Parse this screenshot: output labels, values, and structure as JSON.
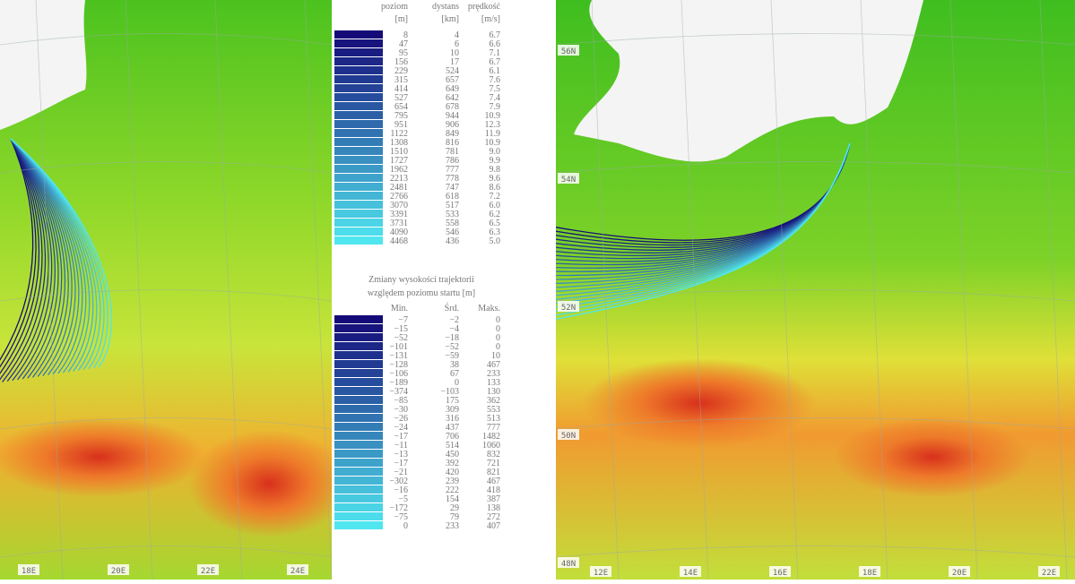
{
  "left_map": {
    "lon_labels": [
      "18E",
      "20E",
      "22E",
      "24E"
    ]
  },
  "right_map": {
    "lat_labels": [
      "56N",
      "54N",
      "52N",
      "50N",
      "48N"
    ],
    "lon_labels": [
      "12E",
      "14E",
      "16E",
      "18E",
      "20E",
      "22E"
    ]
  },
  "table1": {
    "headers": [
      "poziom",
      "dystans",
      "prędkość"
    ],
    "units": [
      "[m]",
      "[km]",
      "[m/s]"
    ],
    "rows": [
      [
        "8",
        "4",
        "6.7"
      ],
      [
        "47",
        "6",
        "6.6"
      ],
      [
        "95",
        "10",
        "7.1"
      ],
      [
        "156",
        "17",
        "6.7"
      ],
      [
        "229",
        "524",
        "6.1"
      ],
      [
        "315",
        "657",
        "7.6"
      ],
      [
        "414",
        "649",
        "7.5"
      ],
      [
        "527",
        "642",
        "7.4"
      ],
      [
        "654",
        "678",
        "7.9"
      ],
      [
        "795",
        "944",
        "10.9"
      ],
      [
        "951",
        "906",
        "12.3"
      ],
      [
        "1122",
        "849",
        "11.9"
      ],
      [
        "1308",
        "816",
        "10.9"
      ],
      [
        "1510",
        "781",
        "9.0"
      ],
      [
        "1727",
        "786",
        "9.9"
      ],
      [
        "1962",
        "777",
        "9.8"
      ],
      [
        "2213",
        "778",
        "9.6"
      ],
      [
        "2481",
        "747",
        "8.6"
      ],
      [
        "2766",
        "618",
        "7.2"
      ],
      [
        "3070",
        "517",
        "6.0"
      ],
      [
        "3391",
        "533",
        "6.2"
      ],
      [
        "3731",
        "558",
        "6.5"
      ],
      [
        "4090",
        "546",
        "6.3"
      ],
      [
        "4468",
        "436",
        "5.0"
      ]
    ]
  },
  "table2": {
    "title": [
      "Zmiany wysokości trajektorii",
      "względem poziomu startu [m]"
    ],
    "headers": [
      "Min.",
      "Śrd.",
      "Maks."
    ],
    "rows": [
      [
        "−7",
        "−2",
        "0"
      ],
      [
        "−15",
        "−4",
        "0"
      ],
      [
        "−52",
        "−18",
        "0"
      ],
      [
        "−101",
        "−52",
        "0"
      ],
      [
        "−131",
        "−59",
        "10"
      ],
      [
        "−128",
        "38",
        "467"
      ],
      [
        "−106",
        "67",
        "233"
      ],
      [
        "−189",
        "0",
        "133"
      ],
      [
        "−374",
        "−103",
        "130"
      ],
      [
        "−85",
        "175",
        "362"
      ],
      [
        "−30",
        "309",
        "553"
      ],
      [
        "−26",
        "316",
        "513"
      ],
      [
        "−24",
        "437",
        "777"
      ],
      [
        "−17",
        "706",
        "1482"
      ],
      [
        "−11",
        "514",
        "1060"
      ],
      [
        "−13",
        "450",
        "832"
      ],
      [
        "−17",
        "392",
        "721"
      ],
      [
        "−21",
        "420",
        "821"
      ],
      [
        "−302",
        "239",
        "467"
      ],
      [
        "−16",
        "222",
        "418"
      ],
      [
        "−5",
        "154",
        "387"
      ],
      [
        "−172",
        "29",
        "138"
      ],
      [
        "−75",
        "79",
        "272"
      ],
      [
        "0",
        "233",
        "407"
      ]
    ]
  }
}
